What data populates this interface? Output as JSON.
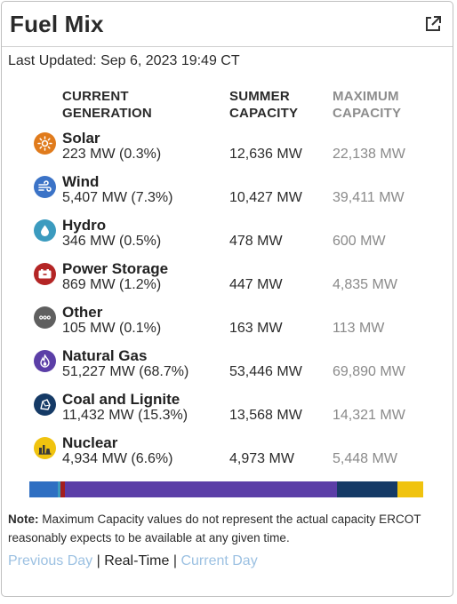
{
  "title": "Fuel Mix",
  "external_icon": "external-link-icon",
  "last_updated": "Last Updated: Sep 6, 2023 19:49 CT",
  "headers": {
    "current_generation": [
      "CURRENT",
      "GENERATION"
    ],
    "summer_capacity": [
      "SUMMER",
      "CAPACITY"
    ],
    "maximum_capacity": [
      "MAXIMUM",
      "CAPACITY"
    ]
  },
  "fuels": [
    {
      "name": "Solar",
      "generation": "223 MW (0.3%)",
      "summer": "12,636 MW",
      "maximum": "22,138 MW",
      "icon": "sun-icon",
      "color": "#e07b1c"
    },
    {
      "name": "Wind",
      "generation": "5,407 MW (7.3%)",
      "summer": "10,427 MW",
      "maximum": "39,411 MW",
      "icon": "wind-icon",
      "color": "#3b73c7"
    },
    {
      "name": "Hydro",
      "generation": "346 MW (0.5%)",
      "summer": "478 MW",
      "maximum": "600 MW",
      "icon": "water-drop-icon",
      "color": "#3b9bbf"
    },
    {
      "name": "Power Storage",
      "generation": "869 MW (1.2%)",
      "summer": "447 MW",
      "maximum": "4,835 MW",
      "icon": "battery-icon",
      "color": "#b42525"
    },
    {
      "name": "Other",
      "generation": "105 MW (0.1%)",
      "summer": "163 MW",
      "maximum": "113 MW",
      "icon": "dots-icon",
      "color": "#5f5f5f"
    },
    {
      "name": "Natural Gas",
      "generation": "51,227 MW (68.7%)",
      "summer": "53,446 MW",
      "maximum": "69,890 MW",
      "icon": "flame-icon",
      "color": "#5b3ea7"
    },
    {
      "name": "Coal and Lignite",
      "generation": "11,432 MW (15.3%)",
      "summer": "13,568 MW",
      "maximum": "14,321 MW",
      "icon": "coal-icon",
      "color": "#153a66"
    },
    {
      "name": "Nuclear",
      "generation": "4,934 MW (6.6%)",
      "summer": "4,973 MW",
      "maximum": "5,448 MW",
      "icon": "nuclear-plant-icon",
      "color": "#f0c30f"
    }
  ],
  "mix_bar": [
    {
      "fuel": "Wind",
      "percent": 7.3,
      "color": "#2f6fc2"
    },
    {
      "fuel": "Hydro",
      "percent": 0.5,
      "color": "#3b9bbf"
    },
    {
      "fuel": "Power Storage",
      "percent": 1.2,
      "color": "#a31f1f"
    },
    {
      "fuel": "Natural Gas",
      "percent": 68.7,
      "color": "#5b3ea7"
    },
    {
      "fuel": "Coal and Lignite",
      "percent": 15.3,
      "color": "#153a66"
    },
    {
      "fuel": "Nuclear",
      "percent": 6.6,
      "color": "#f0c30f"
    }
  ],
  "note": {
    "label": "Note:",
    "text": " Maximum Capacity values do not represent the actual capacity ERCOT reasonably expects to be available at any given time."
  },
  "links": {
    "previous": "Previous Day",
    "realtime": "Real-Time",
    "current": "Current Day",
    "separator": " | "
  }
}
